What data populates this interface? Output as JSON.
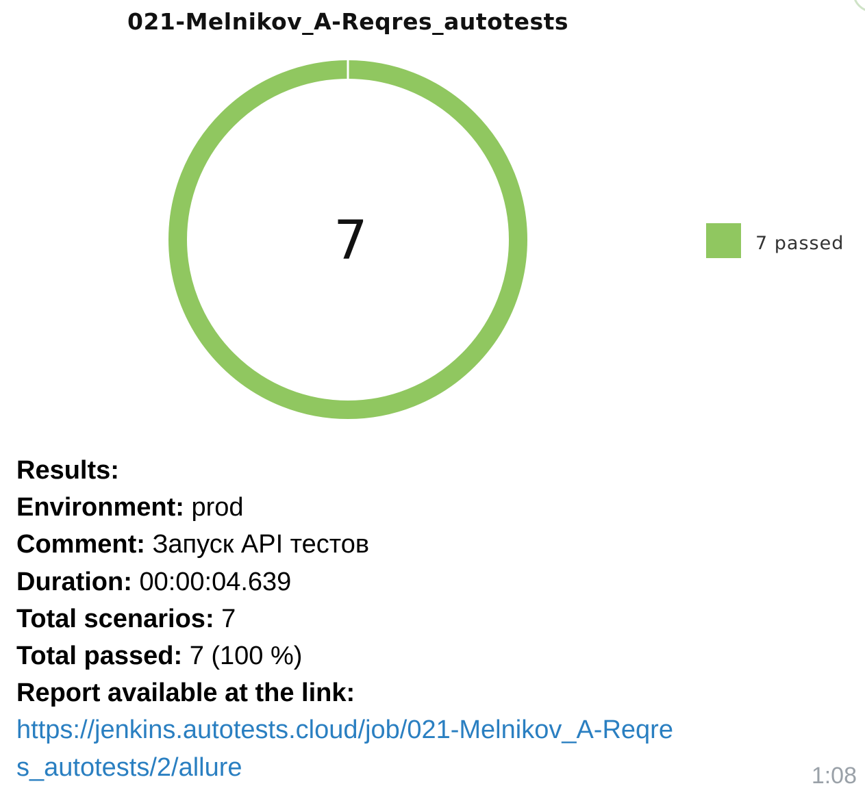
{
  "chart_data": {
    "type": "pie",
    "title": "021-Melnikov_A-Reqres_autotests",
    "center_value": "7",
    "slices": [
      {
        "label": "7 passed",
        "value": 7,
        "color": "#90c760"
      }
    ],
    "legend": "right",
    "donut": true
  },
  "message": {
    "results_label": "Results:",
    "environment": {
      "label": "Environment:",
      "value": "prod"
    },
    "comment": {
      "label": "Comment:",
      "value": "Запуск API тестов"
    },
    "duration": {
      "label": "Duration:",
      "value": "00:00:04.639"
    },
    "total_scenarios": {
      "label": "Total scenarios:",
      "value": "7"
    },
    "total_passed": {
      "label": "Total passed:",
      "value": "7 (100 %)"
    },
    "report": {
      "label": "Report available at the link:",
      "url": "https://jenkins.autotests.cloud/job/021-Melnikov_A-Reqres_autotests/2/allure"
    },
    "timestamp": "1:08"
  }
}
